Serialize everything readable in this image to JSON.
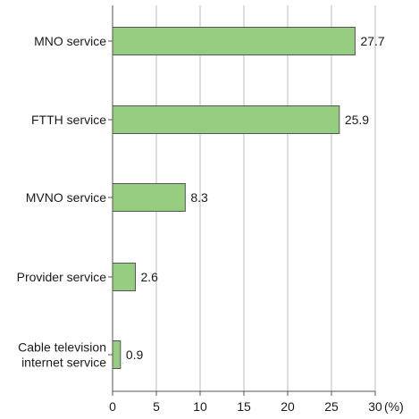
{
  "chart_data": {
    "type": "bar",
    "orientation": "horizontal",
    "categories": [
      [
        "MNO service"
      ],
      [
        "FTTH service"
      ],
      [
        "MVNO service"
      ],
      [
        "Provider service"
      ],
      [
        "Cable television",
        "internet service"
      ]
    ],
    "values": [
      27.7,
      25.9,
      8.3,
      2.6,
      0.9
    ],
    "value_labels": [
      "27.7",
      "25.9",
      "8.3",
      "2.6",
      "0.9"
    ],
    "title": "",
    "xlabel": "",
    "ylabel": "",
    "unit": "(%)",
    "xlim": [
      0,
      30
    ],
    "xticks": [
      0,
      5,
      10,
      15,
      20,
      25,
      30
    ],
    "grid": "vertical",
    "bar_color": "#96cd80",
    "bar_edge_color": "#555555",
    "grid_color": "#bbbbbb",
    "axis_color": "#555555"
  }
}
